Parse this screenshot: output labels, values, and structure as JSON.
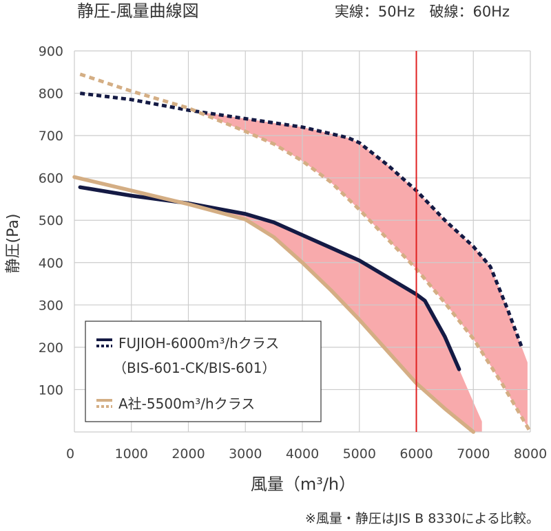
{
  "chart_data": {
    "type": "line",
    "title": "静圧-風量曲線図",
    "freq_note": "実線：50Hz　破線：60Hz",
    "xlabel": "風量（m³/h）",
    "ylabel": "静圧(Pa)",
    "footnote": "※風量・静圧はJIS B 8330による比較。",
    "xlim": [
      0,
      8000
    ],
    "ylim": [
      0,
      900
    ],
    "xticks": [
      0,
      1000,
      2000,
      3000,
      4000,
      5000,
      6000,
      7000,
      8000
    ],
    "yticks": [
      100,
      200,
      300,
      400,
      500,
      600,
      700,
      800,
      900
    ],
    "grid": true,
    "reference_line_x": 6000,
    "legend": {
      "placement": "bottom-left",
      "fujioh_line1": "FUJIOH-6000m³/hクラス",
      "fujioh_line2": "（BIS-601-CK/BIS-601）",
      "competitor": "A社-5500m³/hクラス"
    },
    "series": [
      {
        "name": "FUJIOH-6000m³/hクラス",
        "frequency": "50Hz",
        "style": "solid",
        "color": "#141a44",
        "x": [
          100,
          1000,
          2000,
          3000,
          3500,
          4000,
          4500,
          5000,
          5500,
          6000,
          6150,
          6500,
          6750
        ],
        "y": [
          578,
          558,
          540,
          515,
          495,
          465,
          435,
          405,
          365,
          325,
          310,
          225,
          148
        ]
      },
      {
        "name": "FUJIOH-6000m³/hクラス",
        "frequency": "60Hz",
        "style": "dashed",
        "color": "#141a44",
        "x": [
          100,
          1000,
          2000,
          3000,
          4000,
          4800,
          5000,
          5500,
          6000,
          6500,
          7000,
          7300,
          7600,
          7850
        ],
        "y": [
          800,
          785,
          760,
          740,
          720,
          695,
          683,
          630,
          570,
          500,
          438,
          390,
          290,
          200
        ]
      },
      {
        "name": "A社-5500m³/hクラス",
        "frequency": "50Hz",
        "style": "solid",
        "color": "#d4ae84",
        "x": [
          0,
          1000,
          2000,
          3000,
          3500,
          4000,
          4500,
          5000,
          5500,
          6000,
          6500,
          7000
        ],
        "y": [
          602,
          570,
          538,
          502,
          460,
          400,
          335,
          265,
          190,
          115,
          55,
          0
        ]
      },
      {
        "name": "A社-5500m³/hクラス",
        "frequency": "60Hz",
        "style": "dashed",
        "color": "#d4ae84",
        "x": [
          100,
          1000,
          2000,
          3000,
          3500,
          4000,
          4500,
          5000,
          5500,
          6000,
          6500,
          7000,
          7500,
          8000
        ],
        "y": [
          845,
          805,
          765,
          710,
          680,
          640,
          590,
          525,
          455,
          385,
          305,
          220,
          115,
          0
        ]
      }
    ],
    "bands": [
      {
        "from_series": 2,
        "to_series": 0,
        "x_end": 7150,
        "color": "#f79b9e"
      },
      {
        "from_series": 3,
        "to_series": 1,
        "x_end": 7950,
        "color": "#f79b9e"
      }
    ],
    "colors": {
      "grid": "#cccccc",
      "reference_line": "#e02020",
      "band": "#f79b9e"
    }
  }
}
